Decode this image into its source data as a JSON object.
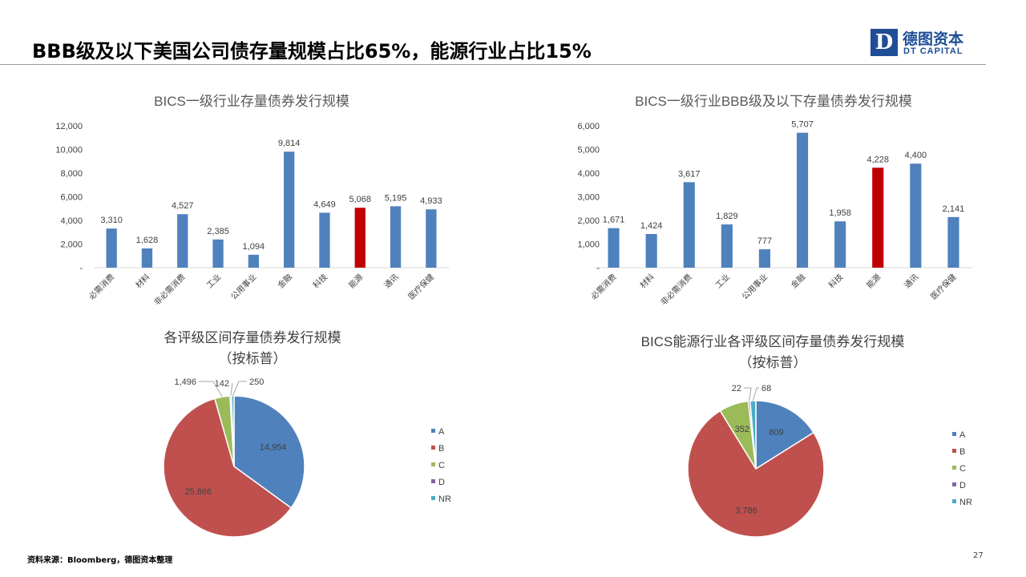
{
  "slide": {
    "title": "BBB级及以下美国公司债存量规模占比65%，能源行业占比15%",
    "footer": "资料来源：Bloomberg，德图资本整理",
    "page_number": "27"
  },
  "logo": {
    "cn": "德图资本",
    "en": "DT CAPITAL",
    "mark": "D"
  },
  "colors": {
    "bar": "#4f81bd",
    "highlight": "#c00000",
    "A": "#4f81bd",
    "B": "#c0504d",
    "C": "#9bbb59",
    "D": "#8064a2",
    "NR": "#4bacc6"
  },
  "chart_data": [
    {
      "type": "bar",
      "title": "BICS一级行业存量债券发行规模",
      "categories": [
        "必需消费",
        "材料",
        "非必需消费",
        "工业",
        "公用事业",
        "金融",
        "科技",
        "能源",
        "通讯",
        "医疗保健"
      ],
      "values": [
        3310,
        1628,
        4527,
        2385,
        1094,
        9814,
        4649,
        5068,
        5195,
        4933
      ],
      "value_labels": [
        "3,310",
        "1,628",
        "4,527",
        "2,385",
        "1,094",
        "9,814",
        "4,649",
        "5,068",
        "5,195",
        "4,933"
      ],
      "highlight_category": "能源",
      "ylim": [
        0,
        12000
      ],
      "yticks": [
        "-",
        "2,000",
        "4,000",
        "6,000",
        "8,000",
        "10,000",
        "12,000"
      ],
      "grid": false
    },
    {
      "type": "bar",
      "title": "BICS一级行业BBB级及以下存量债券发行规模",
      "categories": [
        "必需消费",
        "材料",
        "非必需消费",
        "工业",
        "公用事业",
        "金融",
        "科技",
        "能源",
        "通讯",
        "医疗保健"
      ],
      "values": [
        1671,
        1424,
        3617,
        1829,
        777,
        5707,
        1958,
        4228,
        4400,
        2141
      ],
      "value_labels": [
        "1,671",
        "1,424",
        "3,617",
        "1,829",
        "777",
        "5,707",
        "1,958",
        "4,228",
        "4,400",
        "2,141"
      ],
      "highlight_category": "能源",
      "ylim": [
        0,
        6000
      ],
      "yticks": [
        "-",
        "1,000",
        "2,000",
        "3,000",
        "4,000",
        "5,000",
        "6,000"
      ],
      "grid": false
    },
    {
      "type": "pie",
      "title": "各评级区间存量债券发行规模",
      "subtitle": "（按标普）",
      "categories": [
        "A",
        "B",
        "C",
        "D",
        "NR"
      ],
      "values": [
        14954,
        25866,
        1496,
        142,
        250
      ],
      "value_labels": [
        "14,954",
        "25,866",
        "1,496",
        "142",
        "250"
      ],
      "legend": "right"
    },
    {
      "type": "pie",
      "title": "BICS能源行业各评级区间存量债券发行规模",
      "subtitle": "（按标普）",
      "categories": [
        "A",
        "B",
        "C",
        "D",
        "NR"
      ],
      "values": [
        809,
        3786,
        352,
        22,
        68
      ],
      "value_labels": [
        "809",
        "3,786",
        "352",
        "22",
        "68"
      ],
      "legend": "right"
    }
  ]
}
